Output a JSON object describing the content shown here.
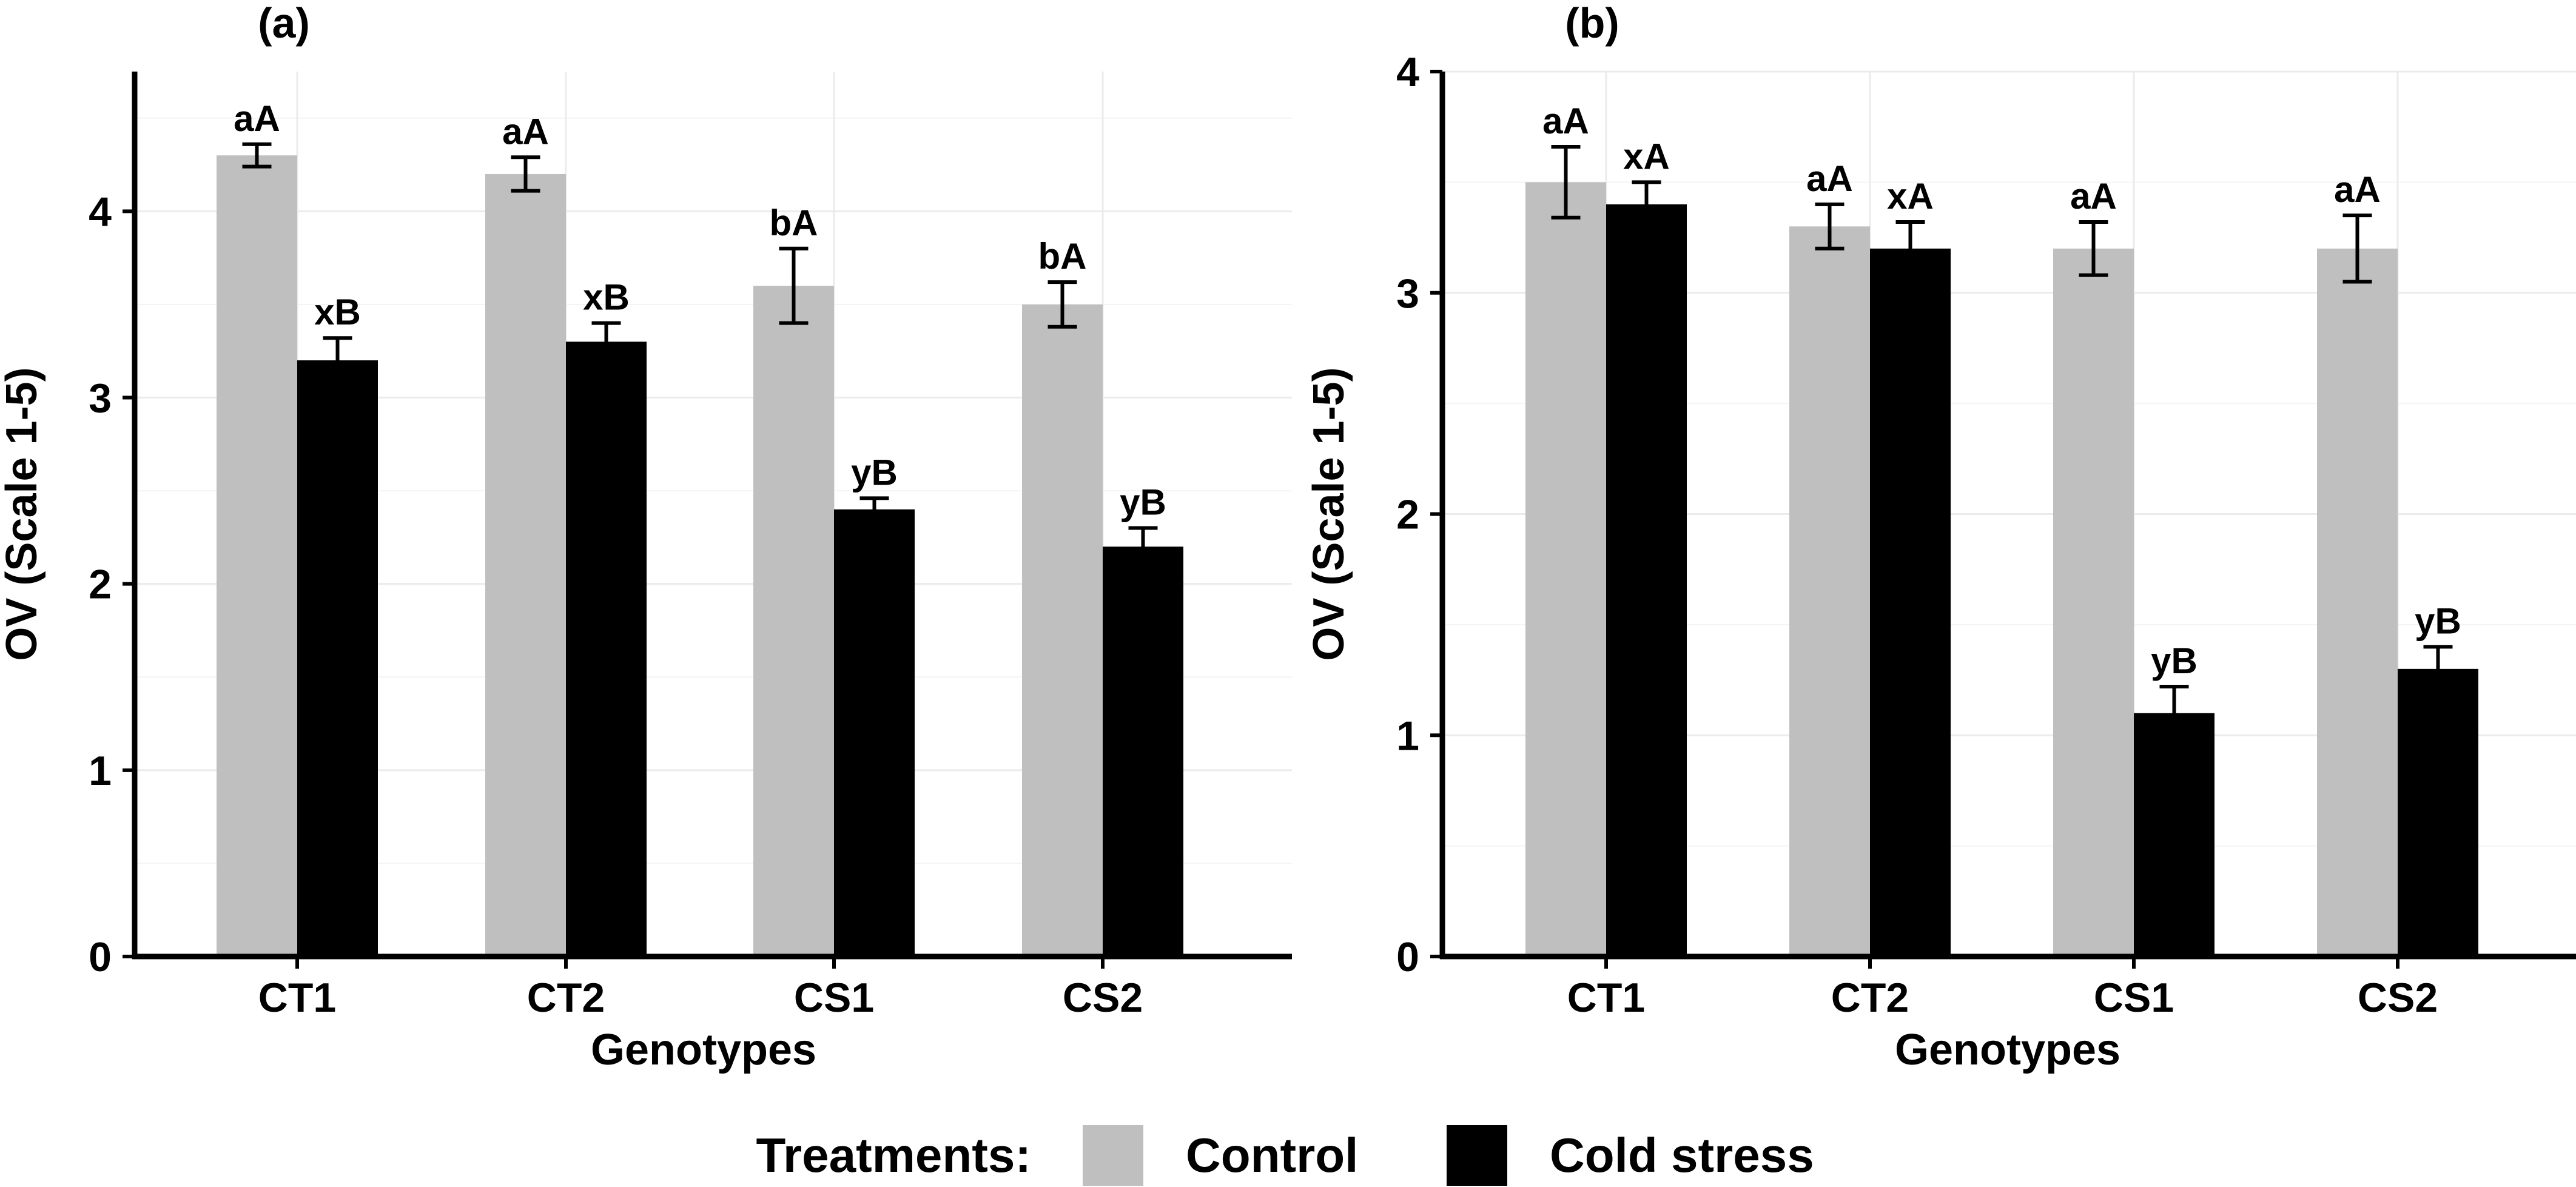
{
  "chart_data": [
    {
      "panel": "(a)",
      "type": "bar",
      "xlabel": "Genotypes",
      "ylabel": "OV (Scale 1-5)",
      "ylim": [
        0,
        4.75
      ],
      "yticks": [
        0,
        1,
        2,
        3,
        4
      ],
      "categories": [
        "CT1",
        "CT2",
        "CS1",
        "CS2"
      ],
      "series": [
        {
          "name": "Control",
          "color": "#bfbfbf",
          "values": [
            4.3,
            4.2,
            3.6,
            3.5
          ],
          "errors": [
            0.06,
            0.09,
            0.2,
            0.12
          ],
          "labels": [
            "aA",
            "aA",
            "bA",
            "bA"
          ]
        },
        {
          "name": "Cold stress",
          "color": "#000000",
          "values": [
            3.2,
            3.3,
            2.4,
            2.2
          ],
          "errors": [
            0.12,
            0.1,
            0.06,
            0.1
          ],
          "labels": [
            "xB",
            "xB",
            "yB",
            "yB"
          ]
        }
      ]
    },
    {
      "panel": "(b)",
      "type": "bar",
      "xlabel": "Genotypes",
      "ylabel": "OV (Scale 1-5)",
      "ylim": [
        0,
        4
      ],
      "yticks": [
        0,
        1,
        2,
        3,
        4
      ],
      "categories": [
        "CT1",
        "CT2",
        "CS1",
        "CS2"
      ],
      "series": [
        {
          "name": "Control",
          "color": "#bfbfbf",
          "values": [
            3.5,
            3.3,
            3.2,
            3.2
          ],
          "errors": [
            0.16,
            0.1,
            0.12,
            0.15
          ],
          "labels": [
            "aA",
            "aA",
            "aA",
            "aA"
          ]
        },
        {
          "name": "Cold stress",
          "color": "#000000",
          "values": [
            3.4,
            3.2,
            1.1,
            1.3
          ],
          "errors": [
            0.1,
            0.12,
            0.12,
            0.1
          ],
          "labels": [
            "xA",
            "xA",
            "yB",
            "yB"
          ]
        }
      ]
    }
  ],
  "legend": {
    "title": "Treatments:",
    "items": [
      {
        "name": "Control",
        "color": "#bfbfbf"
      },
      {
        "name": "Cold stress",
        "color": "#000000"
      }
    ]
  }
}
